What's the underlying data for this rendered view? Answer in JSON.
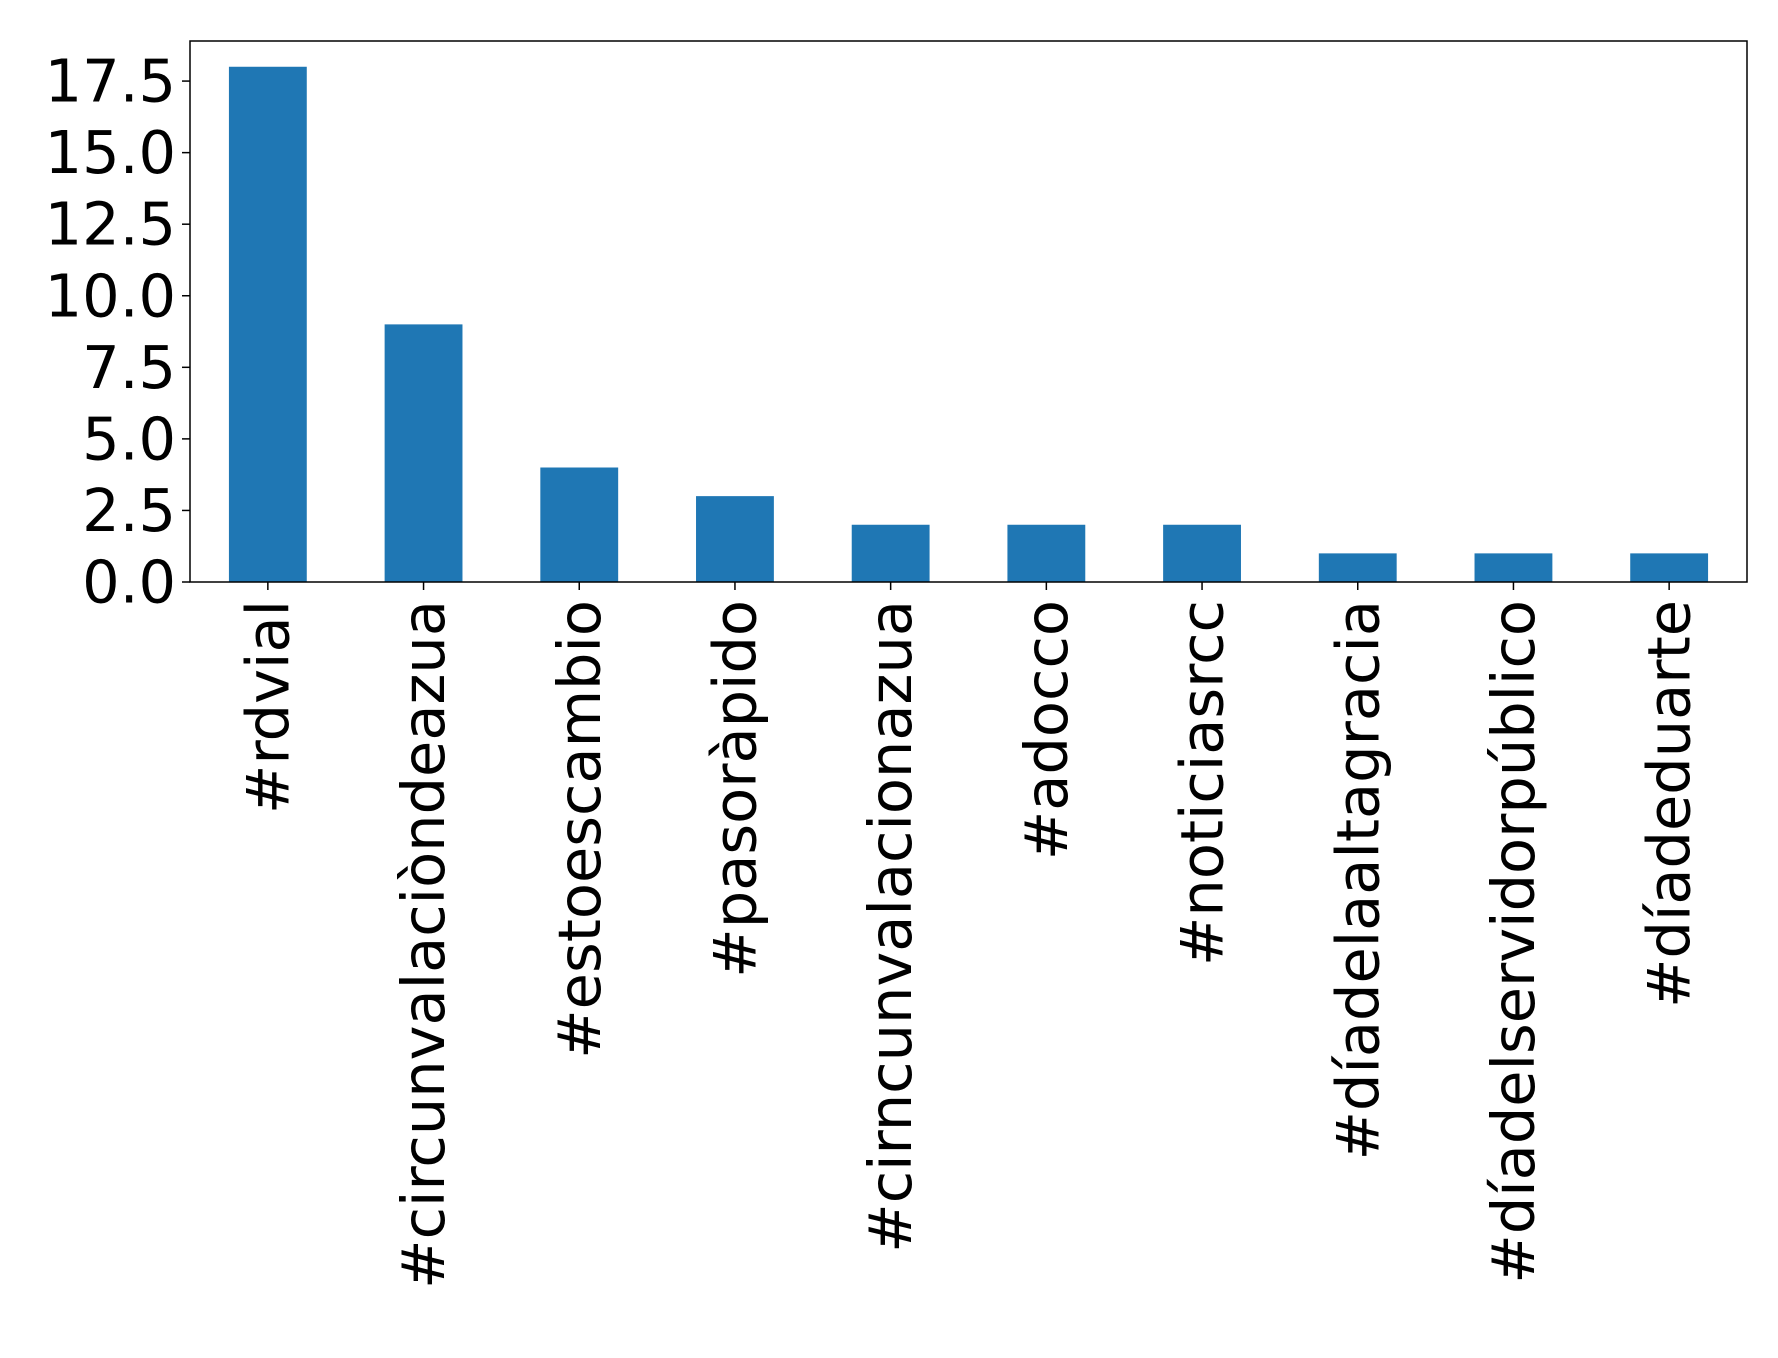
{
  "chart_data": {
    "type": "bar",
    "categories": [
      "#rdvial",
      "#circunvalaciòndeazua",
      "#estoescambio",
      "#pasoràpido",
      "#cirncunvalacionazua",
      "#adocco",
      "#noticiasrcc",
      "#díadelaaltagracia",
      "#díadelservidorpúblico",
      "#díadeduarte"
    ],
    "values": [
      18,
      9,
      4,
      3,
      2,
      2,
      2,
      1,
      1,
      1
    ],
    "title": "",
    "xlabel": "",
    "ylabel": "",
    "ylim": [
      0,
      18.9
    ],
    "yticks": [
      "0.0",
      "2.5",
      "5.0",
      "7.5",
      "10.0",
      "12.5",
      "15.0",
      "17.5"
    ],
    "bar_color": "#1f77b4",
    "grid": false,
    "legend": "none"
  }
}
